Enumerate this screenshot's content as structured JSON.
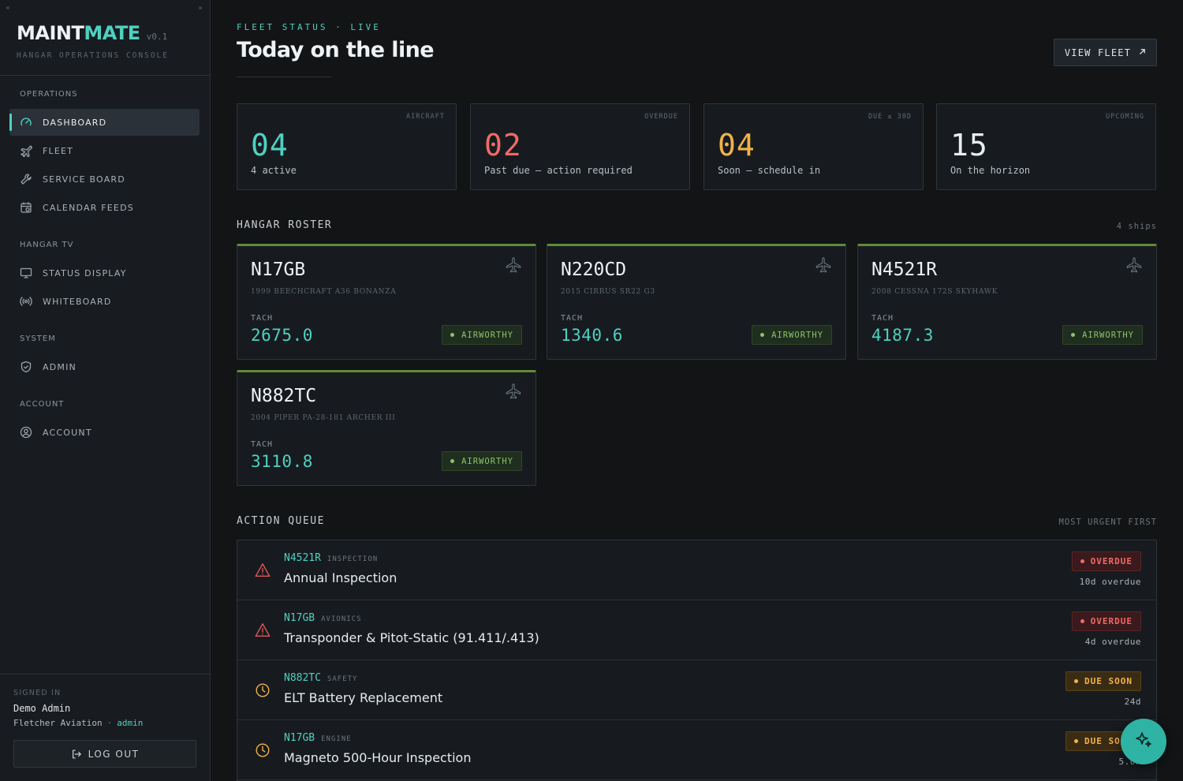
{
  "app": {
    "brand_primary": "MAINT",
    "brand_accent": "MATE",
    "version": "v0.1",
    "subtitle": "HANGAR OPERATIONS CONSOLE"
  },
  "colors": {
    "accent": "#4fd1c0",
    "danger": "#f06a66",
    "warning": "#f2b24a",
    "ok": "#8bc46a",
    "background": "#121416",
    "sidebar": "#181c20"
  },
  "sidebar": {
    "sections": [
      {
        "label": "OPERATIONS",
        "items": [
          {
            "label": "DASHBOARD",
            "icon": "gauge-icon",
            "active": true
          },
          {
            "label": "FLEET",
            "icon": "plane-icon"
          },
          {
            "label": "SERVICE BOARD",
            "icon": "wrench-icon"
          },
          {
            "label": "CALENDAR FEEDS",
            "icon": "calendar-icon"
          }
        ]
      },
      {
        "label": "HANGAR TV",
        "items": [
          {
            "label": "STATUS DISPLAY",
            "icon": "monitor-icon"
          },
          {
            "label": "WHITEBOARD",
            "icon": "broadcast-icon"
          }
        ]
      },
      {
        "label": "SYSTEM",
        "items": [
          {
            "label": "ADMIN",
            "icon": "shield-icon"
          }
        ]
      },
      {
        "label": "ACCOUNT",
        "items": [
          {
            "label": "ACCOUNT",
            "icon": "user-circle-icon"
          }
        ]
      }
    ],
    "signed_in_label": "SIGNED IN",
    "user_name": "Demo Admin",
    "org": "Fletcher Aviation",
    "org_separator": "·",
    "role": "admin",
    "logout_label": "LOG OUT"
  },
  "header": {
    "eyebrow": "FLEET STATUS · LIVE",
    "title": "Today on the line",
    "view_fleet_label": "VIEW FLEET",
    "view_fleet_icon": "arrow-up-right-icon"
  },
  "kpis": [
    {
      "tag": "AIRCRAFT",
      "value": "04",
      "sub": "4 active",
      "color": "#4fd1c0"
    },
    {
      "tag": "OVERDUE",
      "value": "02",
      "sub": "Past due — action required",
      "color": "#f06a66"
    },
    {
      "tag": "DUE ≤ 30D",
      "value": "04",
      "sub": "Soon — schedule in",
      "color": "#f2b24a"
    },
    {
      "tag": "UPCOMING",
      "value": "15",
      "sub": "On the horizon",
      "color": "#e8edf0"
    }
  ],
  "roster": {
    "title": "HANGAR ROSTER",
    "meta": "4 ships",
    "tach_label": "TACH",
    "ships": [
      {
        "reg": "N17GB",
        "desc": "1999 BEECHCRAFT A36 BONANZA",
        "tach": "2675.0",
        "status": "AIRWORTHY"
      },
      {
        "reg": "N220CD",
        "desc": "2015 CIRRUS SR22 G3",
        "tach": "1340.6",
        "status": "AIRWORTHY"
      },
      {
        "reg": "N4521R",
        "desc": "2008 CESSNA 172S SKYHAWK",
        "tach": "4187.3",
        "status": "AIRWORTHY"
      },
      {
        "reg": "N882TC",
        "desc": "2004 PIPER PA-28-181 ARCHER III",
        "tach": "3110.8",
        "status": "AIRWORTHY"
      }
    ]
  },
  "queue": {
    "title": "ACTION QUEUE",
    "meta": "MOST URGENT FIRST",
    "items": [
      {
        "reg": "N4521R",
        "category": "INSPECTION",
        "title": "Annual Inspection",
        "status": "OVERDUE",
        "when": "10d overdue",
        "icon": "warning-triangle-icon"
      },
      {
        "reg": "N17GB",
        "category": "AVIONICS",
        "title": "Transponder & Pitot-Static (91.411/.413)",
        "status": "OVERDUE",
        "when": "4d overdue",
        "icon": "warning-triangle-icon"
      },
      {
        "reg": "N882TC",
        "category": "SAFETY",
        "title": "ELT Battery Replacement",
        "status": "DUE SOON",
        "when": "24d",
        "icon": "clock-icon"
      },
      {
        "reg": "N17GB",
        "category": "ENGINE",
        "title": "Magneto 500-Hour Inspection",
        "status": "DUE SOON",
        "when": "5.0h",
        "icon": "clock-icon"
      }
    ]
  },
  "fab": {
    "icon": "sparkle-icon"
  }
}
